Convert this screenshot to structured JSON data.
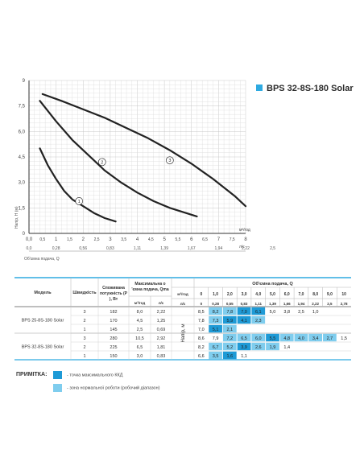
{
  "header": {
    "title": "BPS 32-8S-180 Solar",
    "icon": "square-icon",
    "accent": "#2eaae1"
  },
  "chart_data": {
    "type": "line",
    "title": "BPS 32-8S-180 Solar",
    "xlabel": "Об'ємна подача, Q",
    "ylabel": "Напір, H (м)",
    "x_unit": "м³/год",
    "x2_unit": "л/с",
    "xlim": [
      0,
      8
    ],
    "ylim": [
      0,
      9
    ],
    "x_ticks": [
      "0,0",
      "0,5",
      "1",
      "1,5",
      "2",
      "2,5",
      "3",
      "3,5",
      "4",
      "4,5",
      "5",
      "5,5",
      "6",
      "6,5",
      "7",
      "7,5",
      "8"
    ],
    "x2_ticks": [
      "0,0",
      "0,28",
      "0,56",
      "0,83",
      "1,11",
      "1,39",
      "1,67",
      "1,94",
      "2,22",
      "2,5"
    ],
    "y_ticks": [
      "0",
      "1,5",
      "3,0",
      "4,5",
      "6,0",
      "7,5",
      "9"
    ],
    "grid": true,
    "series": [
      {
        "name": "1",
        "x": [
          0.4,
          0.7,
          1.0,
          1.3,
          1.6,
          2.0,
          2.4,
          2.8,
          3.2
        ],
        "y": [
          5.0,
          4.0,
          3.2,
          2.5,
          2.0,
          1.6,
          1.2,
          0.9,
          0.7
        ]
      },
      {
        "name": "2",
        "x": [
          0.4,
          1.0,
          1.6,
          2.2,
          2.8,
          3.4,
          4.0,
          4.6,
          5.2,
          5.8,
          6.2
        ],
        "y": [
          7.8,
          6.6,
          5.5,
          4.6,
          3.7,
          3.0,
          2.4,
          1.9,
          1.5,
          1.2,
          1.0
        ]
      },
      {
        "name": "3",
        "x": [
          0.5,
          1.2,
          2.0,
          2.8,
          3.6,
          4.4,
          5.2,
          6.0,
          6.8,
          7.6,
          8.0
        ],
        "y": [
          8.2,
          7.8,
          7.3,
          6.8,
          6.2,
          5.6,
          4.9,
          4.1,
          3.2,
          2.2,
          1.6
        ]
      }
    ],
    "curve_labels": [
      {
        "text": "1",
        "x": 1.85,
        "y": 1.9
      },
      {
        "text": "2",
        "x": 2.7,
        "y": 4.2
      },
      {
        "text": "3",
        "x": 5.2,
        "y": 4.3
      }
    ]
  },
  "table": {
    "header": {
      "model": "Модель",
      "speed": "Швидкість",
      "power": "Споживана потужність (P₁), Вт",
      "qmax": "Максимальна об'ємна подача, Qmax",
      "unit_m3h": "м³/год",
      "unit_ls": "л/с",
      "flow": "Об'ємна подача, Q",
      "head": "Напір, м"
    },
    "flow_m3h": [
      "0",
      "1,0",
      "2,0",
      "3,0",
      "4,0",
      "5,0",
      "6,0",
      "7,0",
      "8,0",
      "9,0",
      "10"
    ],
    "flow_ls": [
      "0",
      "0,28",
      "0,55",
      "0,83",
      "1,11",
      "1,39",
      "1,66",
      "1,94",
      "2,22",
      "2,5",
      "2,78"
    ],
    "groups": [
      {
        "model": "BPS 25-8S-180 Solar",
        "rows": [
          {
            "speed": "3",
            "power": "182",
            "qmax_m3h": "8,0",
            "qmax_ls": "2,22",
            "cells": [
              "8,5",
              "8,2",
              "7,8",
              "7,0",
              "6,1",
              "5,0",
              "3,8",
              "2,5",
              "1,0"
            ],
            "hl": [
              0,
              2,
              2,
              1,
              1,
              0,
              0,
              0,
              0
            ]
          },
          {
            "speed": "2",
            "power": "170",
            "qmax_m3h": "4,5",
            "qmax_ls": "1,25",
            "cells": [
              "7,8",
              "7,3",
              "5,9",
              "4,1",
              "2,3"
            ],
            "hl": [
              0,
              2,
              1,
              1,
              2
            ]
          },
          {
            "speed": "1",
            "power": "145",
            "qmax_m3h": "2,5",
            "qmax_ls": "0,69",
            "cells": [
              "7,0",
              "5,1",
              "2,1"
            ],
            "hl": [
              0,
              1,
              2
            ]
          }
        ]
      },
      {
        "model": "BPS 32-8S-180 Solar",
        "rows": [
          {
            "speed": "3",
            "power": "280",
            "qmax_m3h": "10,5",
            "qmax_ls": "2,92",
            "cells": [
              "8,6",
              "7,9",
              "7,2",
              "6,5",
              "6,0",
              "5,5",
              "4,8",
              "4,0",
              "3,4",
              "2,7",
              "1,5"
            ],
            "hl": [
              0,
              0,
              2,
              2,
              2,
              1,
              2,
              2,
              2,
              2,
              0
            ]
          },
          {
            "speed": "2",
            "power": "225",
            "qmax_m3h": "6,5",
            "qmax_ls": "1,81",
            "cells": [
              "8,2",
              "6,7",
              "5,2",
              "3,9",
              "2,6",
              "1,9",
              "1,4"
            ],
            "hl": [
              0,
              2,
              2,
              1,
              2,
              2,
              0
            ]
          },
          {
            "speed": "1",
            "power": "150",
            "qmax_m3h": "3,0",
            "qmax_ls": "0,83",
            "cells": [
              "6,6",
              "3,5",
              "1,6",
              "1,1"
            ],
            "hl": [
              0,
              2,
              1,
              0
            ]
          }
        ]
      }
    ]
  },
  "legend": {
    "note": "ПРИМІТКА:",
    "max_eff": "- точка максимального ККД",
    "normal_zone": "- зона нормальної роботи (робочий діапазон)",
    "color_max": "#1e9ad6",
    "color_zone": "#7fcdee"
  }
}
